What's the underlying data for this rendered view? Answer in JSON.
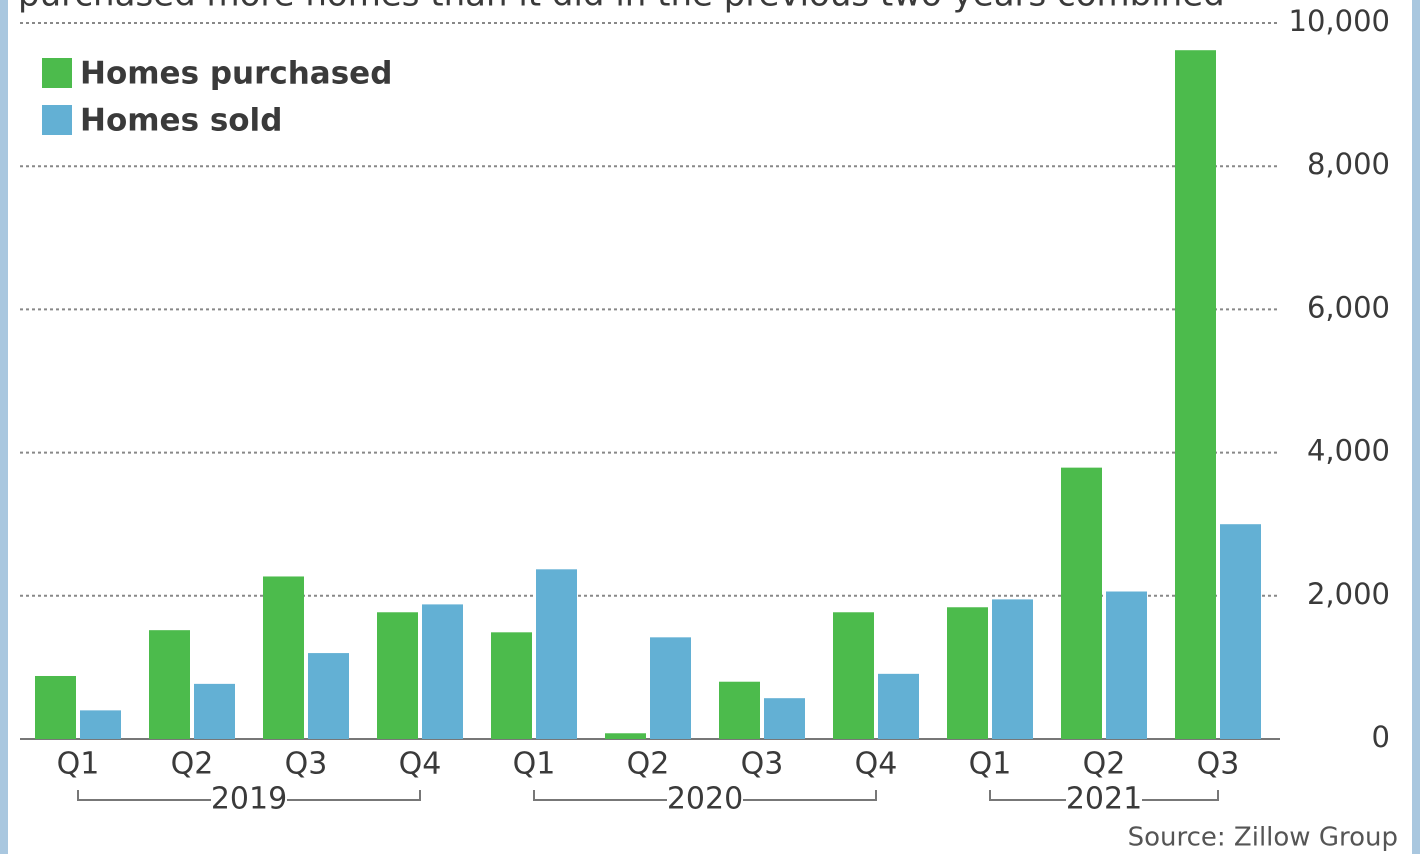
{
  "chart_data": {
    "type": "bar",
    "subtitle": "purchased more homes than it did in the previous two years combined",
    "categories": [
      "Q1",
      "Q2",
      "Q3",
      "Q4",
      "Q1",
      "Q2",
      "Q3",
      "Q4",
      "Q1",
      "Q2",
      "Q3"
    ],
    "groups": [
      {
        "name": "2019",
        "size": 4
      },
      {
        "name": "2020",
        "size": 4
      },
      {
        "name": "2021",
        "size": 3
      }
    ],
    "series": [
      {
        "name": "Homes purchased",
        "color": "#4cbb4c",
        "values": [
          880,
          1520,
          2270,
          1770,
          1490,
          80,
          800,
          1770,
          1840,
          3790,
          9620
        ]
      },
      {
        "name": "Homes sold",
        "color": "#63b0d4",
        "values": [
          400,
          770,
          1200,
          1880,
          2370,
          1420,
          570,
          910,
          1950,
          2060,
          3000
        ]
      }
    ],
    "ylim": [
      0,
      10000
    ],
    "yticks": [
      0,
      {
        "value": 2000,
        "label": "2,000"
      },
      {
        "value": 4000,
        "label": "4,000"
      },
      {
        "value": 6000,
        "label": "6,000"
      },
      {
        "value": 8000,
        "label": "8,000"
      },
      {
        "value": 10000,
        "label": "10,000"
      }
    ],
    "grid": true,
    "legend": "top-left",
    "source": "Source: Zillow Group"
  }
}
